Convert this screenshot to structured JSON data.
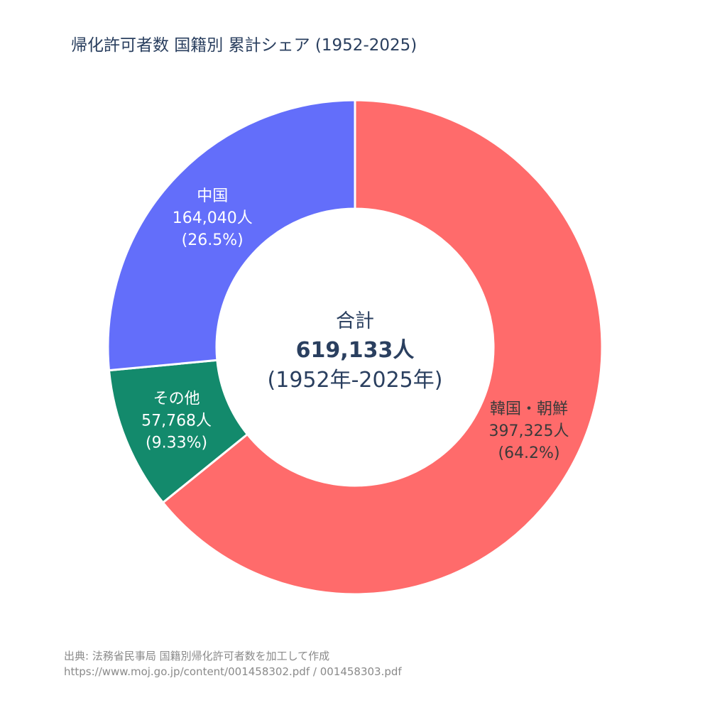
{
  "chart_data": {
    "type": "pie",
    "hole": true,
    "title": "帰化許可者数 国籍別 累計シェア (1952-2025)",
    "slices": [
      {
        "label": "韓国・朝鮮",
        "value": 397325,
        "value_text": "397,325人",
        "percent_text": "(64.2%)",
        "color": "#ff6b6b",
        "text_color": "#3a3a3a"
      },
      {
        "label": "その他",
        "value": 57768,
        "value_text": "57,768人",
        "percent_text": "(9.33%)",
        "color": "#138a6c",
        "text_color": "#ffffff"
      },
      {
        "label": "中国",
        "value": 164040,
        "value_text": "164,040人",
        "percent_text": "(26.5%)",
        "color": "#636efa",
        "text_color": "#ffffff"
      }
    ],
    "center": {
      "title": "合計",
      "total": "619,133人",
      "range": "(1952年-2025年)"
    }
  },
  "source": {
    "line1": "出典: 法務省民事局 国籍別帰化許可者数を加工して作成",
    "line2": "https://www.moj.go.jp/content/001458302.pdf / 001458303.pdf"
  }
}
